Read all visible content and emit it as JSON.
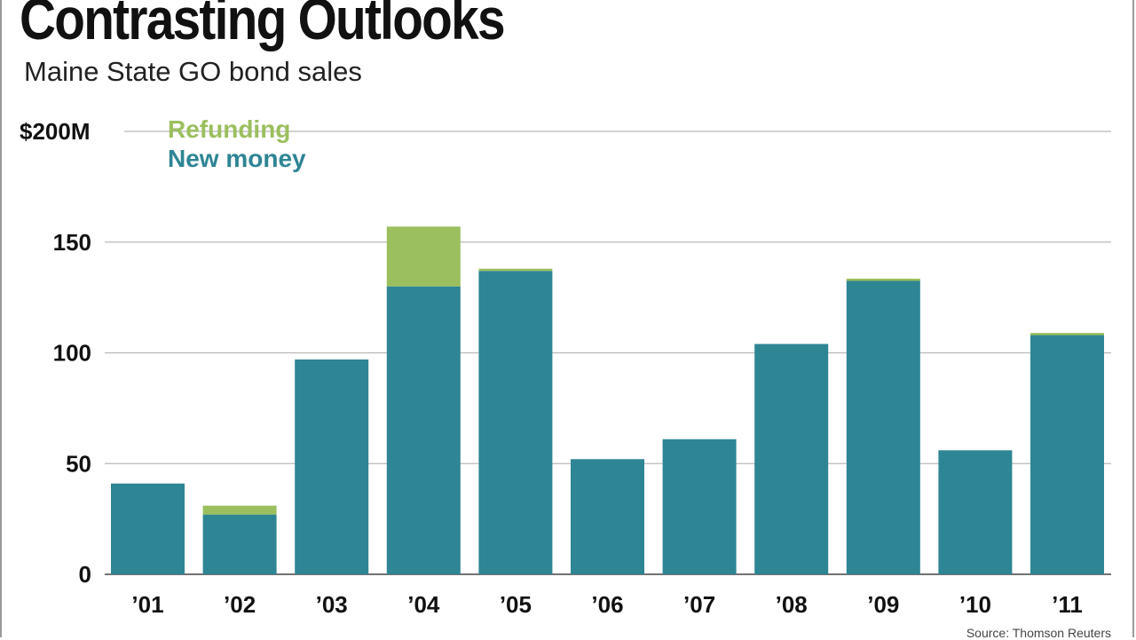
{
  "title": "Contrasting Outlooks",
  "subtitle": "Maine State GO bond sales",
  "source": "Source: Thomson Reuters",
  "colors": {
    "new_money": "#2e8594",
    "refunding": "#9bbf5e",
    "grid": "#b8b8b8",
    "text": "#111111"
  },
  "chart_data": {
    "type": "bar",
    "stacked": true,
    "title": "Contrasting Outlooks",
    "subtitle": "Maine State GO bond sales",
    "categories": [
      "’01",
      "’02",
      "’03",
      "’04",
      "’05",
      "’06",
      "’07",
      "’08",
      "’09",
      "’10",
      "’11"
    ],
    "series": [
      {
        "name": "New money",
        "color": "#2e8594",
        "values": [
          41,
          27,
          97,
          130,
          137,
          52,
          61,
          104,
          133,
          56,
          108
        ]
      },
      {
        "name": "Refunding",
        "color": "#9bbf5e",
        "values": [
          0,
          4,
          0,
          27,
          1,
          0,
          0,
          0,
          0.5,
          0,
          1
        ]
      }
    ],
    "y_tick_labels": [
      "0",
      "50",
      "100",
      "150",
      "$200M"
    ],
    "y_ticks": [
      0,
      50,
      100,
      150,
      200
    ],
    "ylim": [
      0,
      200
    ],
    "xlabel": "",
    "ylabel": "",
    "grid": true,
    "legend": [
      "Refunding",
      "New money"
    ],
    "legend_position": "top-left"
  }
}
